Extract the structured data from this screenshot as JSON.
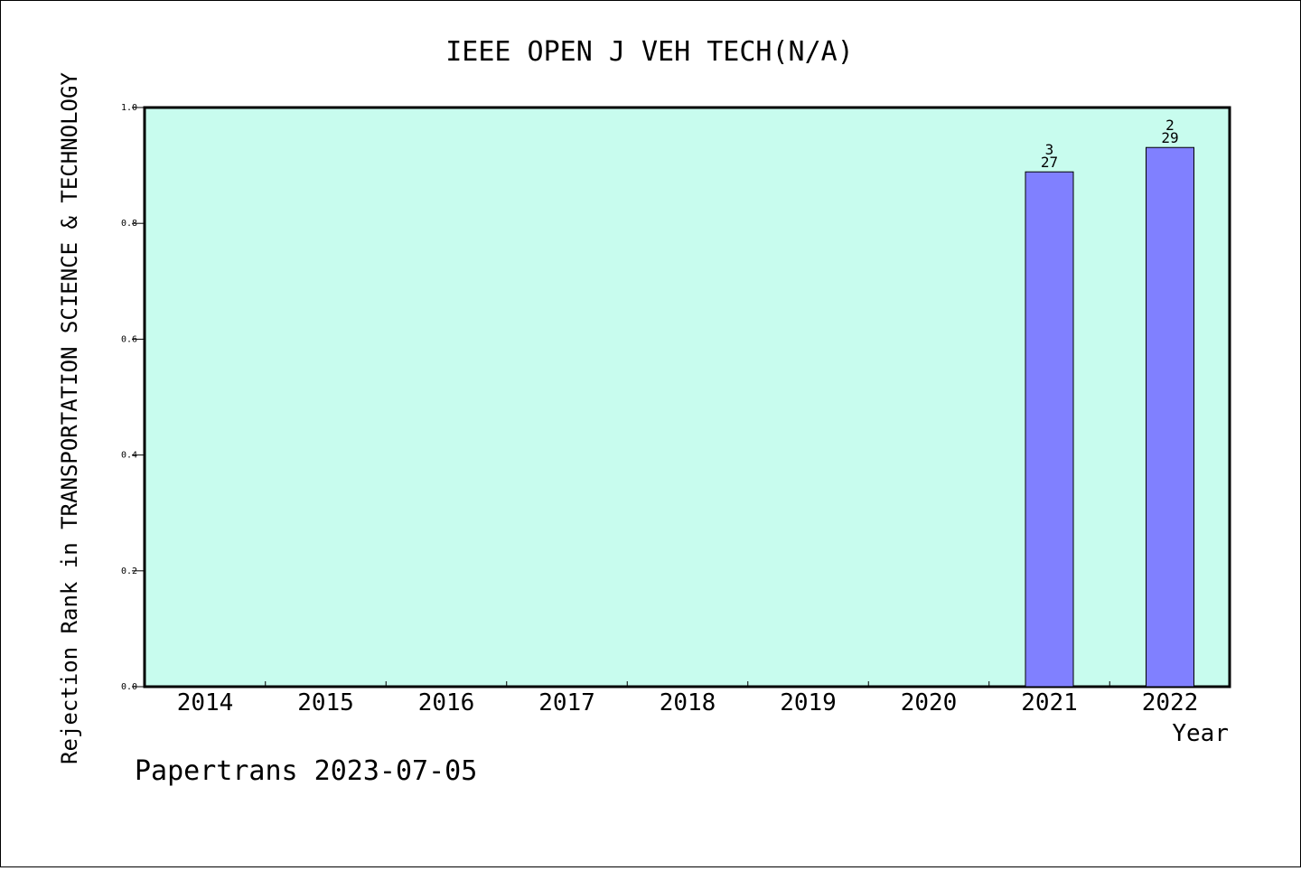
{
  "chart_data": {
    "type": "bar",
    "title": "IEEE OPEN J VEH TECH(N/A)",
    "xlabel": "Year",
    "ylabel": "Rejection Rank in TRANSPORTATION SCIENCE & TECHNOLOGY",
    "categories": [
      "2014",
      "2015",
      "2016",
      "2017",
      "2018",
      "2019",
      "2020",
      "2021",
      "2022"
    ],
    "values": [
      null,
      null,
      null,
      null,
      null,
      null,
      null,
      0.8889,
      0.931
    ],
    "bar_labels": [
      {
        "category": "2021",
        "rank": "3",
        "total": "27"
      },
      {
        "category": "2022",
        "rank": "2",
        "total": "29"
      }
    ],
    "ylim": [
      0,
      1.0
    ],
    "yticks": [
      "0.0",
      "0.2",
      "0.4",
      "0.6",
      "0.8",
      "1.0"
    ],
    "plot_background": "#c8fcee",
    "bar_color": "#8080ff",
    "grid": false,
    "legend": "none"
  },
  "footer": {
    "credit": "Papertrans 2023-07-05"
  }
}
